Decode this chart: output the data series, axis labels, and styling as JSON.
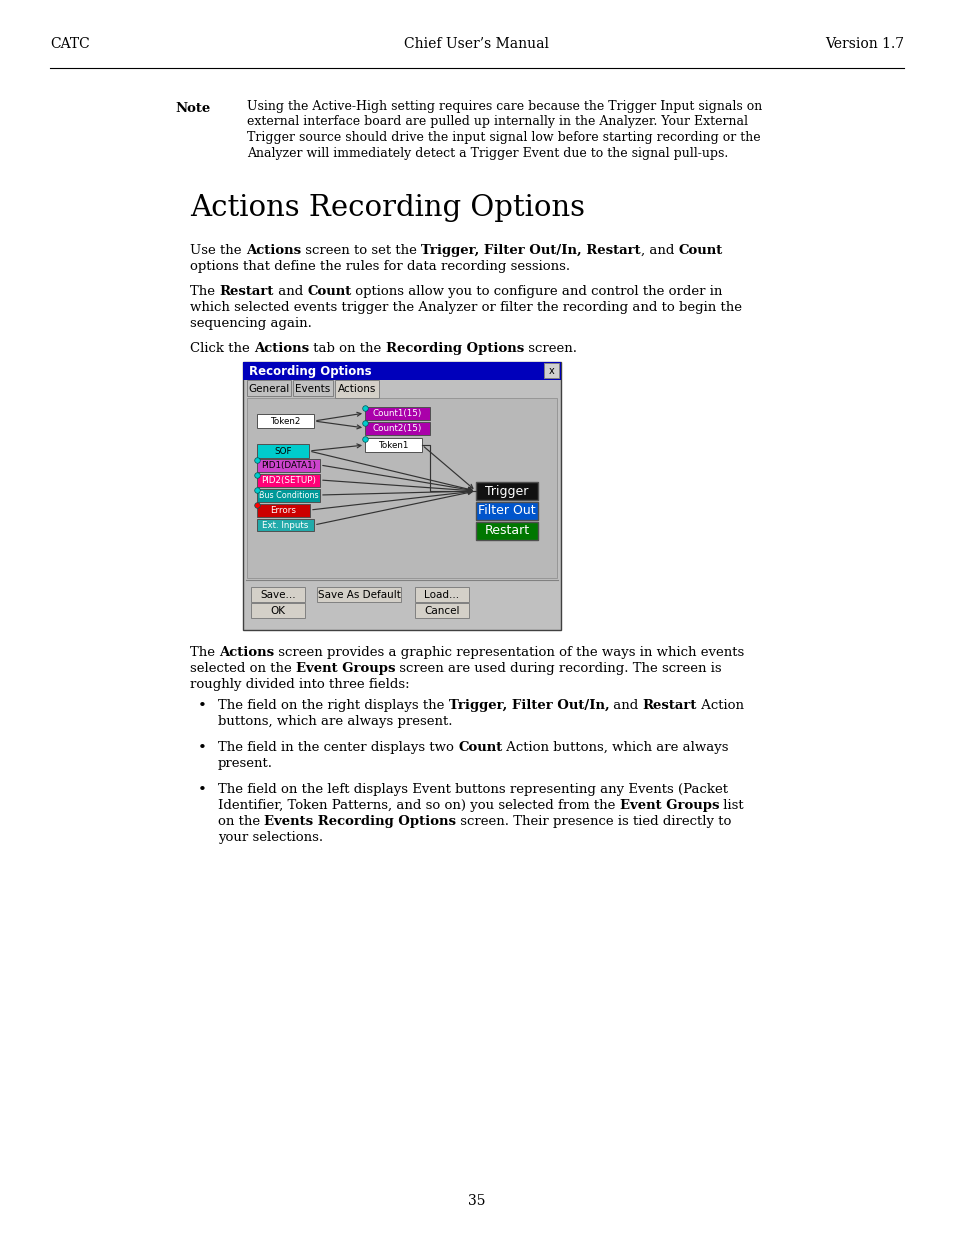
{
  "page_bg": "#ffffff",
  "header_left": "CATC",
  "header_center": "Chief User’s Manual",
  "header_right": "Version 1.7",
  "page_number": "35",
  "note_label": "Note",
  "note_lines": [
    "Using the Active-High setting requires care because the Trigger Input signals on",
    "external interface board are pulled up internally in the Analyzer. Your External",
    "Trigger source should drive the input signal low before starting recording or the",
    "Analyzer will immediately detect a Trigger Event due to the signal pull-ups."
  ],
  "section_title": "Actions Recording Options",
  "dialog_title": "Recording Options",
  "dlg_title_bg": "#0000bb",
  "dlg_body_bg": "#c0c0c0",
  "color_cyan": "#00cccc",
  "color_magenta": "#cc00cc",
  "color_magenta2": "#dd00dd",
  "color_teal": "#009999",
  "color_green_dark": "#007700",
  "color_red": "#cc0000",
  "color_blue_btn": "#0044cc",
  "color_black_btn": "#111111",
  "color_green_btn": "#006600",
  "color_white": "#ffffff",
  "color_gray_btn": "#d4d0c8",
  "color_inner_panel": "#b8b8b8"
}
